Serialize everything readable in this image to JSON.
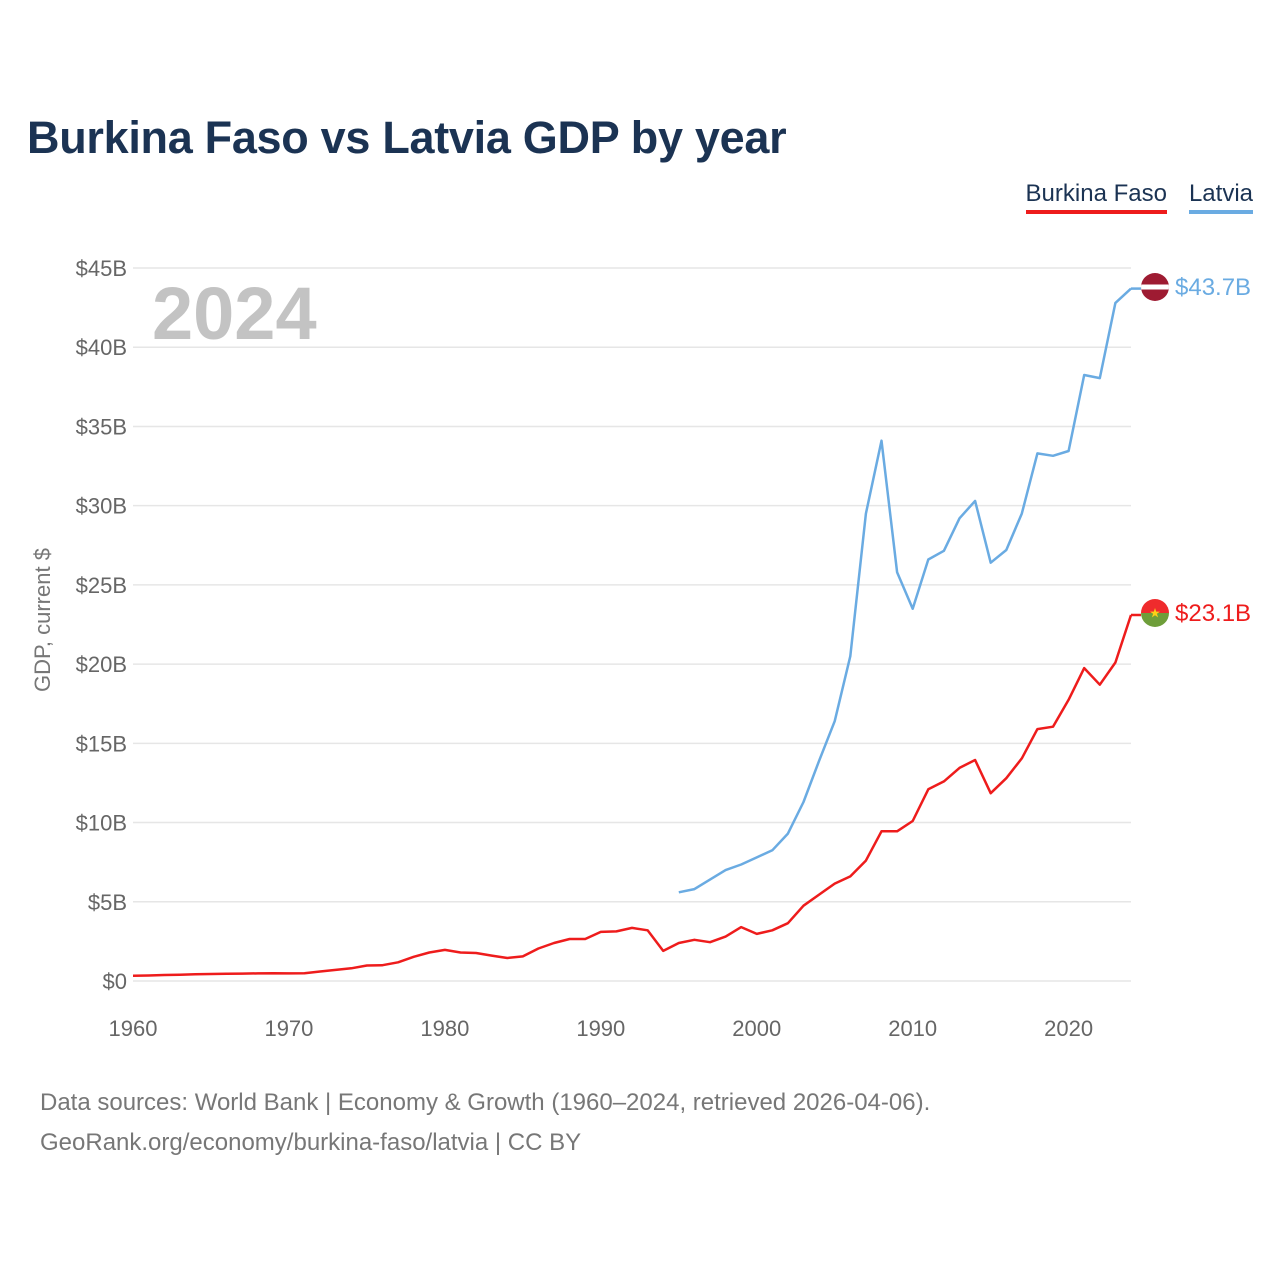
{
  "title": "Burkina Faso vs Latvia GDP by year",
  "legend": [
    {
      "name": "Burkina Faso",
      "color": "#ee1c1c"
    },
    {
      "name": "Latvia",
      "color": "#6aabe2"
    }
  ],
  "source": {
    "line1": "Data sources: World Bank | Economy & Growth (1960–2024, retrieved 2026-04-06).",
    "line2": "GeoRank.org/economy/burkina-faso/latvia | CC BY"
  },
  "chart_data": {
    "type": "line",
    "year_label": "2024",
    "ylabel": "GDP, current $",
    "xlim": [
      1960,
      2024
    ],
    "ylim": [
      0,
      45
    ],
    "x_ticks": [
      1960,
      1970,
      1980,
      1990,
      2000,
      2010,
      2020
    ],
    "y_ticks": [
      {
        "value": 0,
        "label": "$0"
      },
      {
        "value": 5,
        "label": "$5B"
      },
      {
        "value": 10,
        "label": "$10B"
      },
      {
        "value": 15,
        "label": "$15B"
      },
      {
        "value": 20,
        "label": "$20B"
      },
      {
        "value": 25,
        "label": "$25B"
      },
      {
        "value": 30,
        "label": "$30B"
      },
      {
        "value": 35,
        "label": "$35B"
      },
      {
        "value": 40,
        "label": "$40B"
      },
      {
        "value": 45,
        "label": "$45B"
      }
    ],
    "series": [
      {
        "name": "Burkina Faso",
        "color": "#ee1c1c",
        "end_label": "$23.1B",
        "x_start": 1960,
        "values": [
          0.33,
          0.35,
          0.38,
          0.4,
          0.42,
          0.44,
          0.46,
          0.47,
          0.48,
          0.49,
          0.48,
          0.49,
          0.6,
          0.7,
          0.8,
          0.98,
          1.0,
          1.18,
          1.53,
          1.8,
          1.96,
          1.8,
          1.77,
          1.6,
          1.45,
          1.55,
          2.05,
          2.4,
          2.65,
          2.65,
          3.1,
          3.13,
          3.35,
          3.2,
          1.9,
          2.4,
          2.6,
          2.45,
          2.8,
          3.4,
          2.97,
          3.2,
          3.65,
          4.75,
          5.45,
          6.15,
          6.6,
          7.6,
          9.45,
          9.45,
          10.1,
          12.1,
          12.6,
          13.45,
          13.95,
          11.85,
          12.8,
          14.05,
          15.9,
          16.05,
          17.75,
          19.75,
          18.7,
          20.1,
          23.1
        ]
      },
      {
        "name": "Latvia",
        "color": "#6aabe2",
        "end_label": "$43.7B",
        "x_start": 1995,
        "values": [
          5.6,
          5.8,
          6.4,
          7.0,
          7.35,
          7.8,
          8.25,
          9.3,
          11.3,
          13.9,
          16.4,
          20.5,
          29.5,
          34.1,
          25.8,
          23.5,
          26.6,
          27.15,
          29.2,
          30.3,
          26.4,
          27.2,
          29.5,
          33.3,
          33.15,
          33.45,
          38.25,
          38.05,
          42.8,
          43.7
        ]
      }
    ]
  }
}
